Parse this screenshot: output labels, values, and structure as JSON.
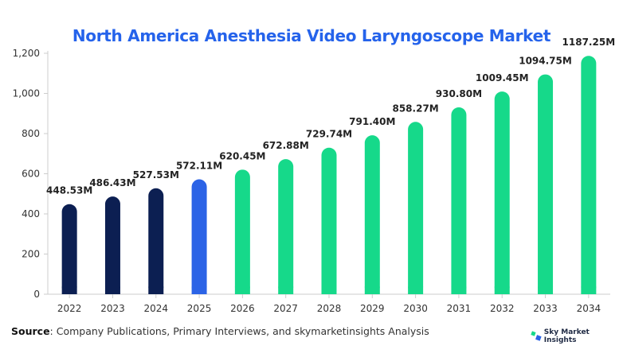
{
  "title": "North America Anesthesia Video Laryngoscope Market",
  "source": {
    "label": "Source",
    "text": ": Company Publications, Primary Interviews, and skymarketinsights Analysis"
  },
  "brand": {
    "name": "Sky Market Insights",
    "icon": "logo-icon"
  },
  "colors": {
    "historical": "#0c1f52",
    "base": "#2b63e6",
    "forecast": "#16d98a",
    "title": "#2563eb"
  },
  "chart_data": {
    "type": "bar",
    "title": "North America Anesthesia Video Laryngoscope Market",
    "xlabel": "",
    "ylabel": "",
    "ylim": [
      0,
      1200
    ],
    "yticks": [
      0,
      200,
      400,
      600,
      800,
      1000,
      1200
    ],
    "ytick_labels": [
      "0",
      "200",
      "400",
      "600",
      "800",
      "1,000",
      "1,200"
    ],
    "grid": false,
    "categories": [
      "2022",
      "2023",
      "2024",
      "2025",
      "2026",
      "2027",
      "2028",
      "2029",
      "2030",
      "2031",
      "2032",
      "2033",
      "2034"
    ],
    "values": [
      448.53,
      486.43,
      527.53,
      572.11,
      620.45,
      672.88,
      729.74,
      791.4,
      858.27,
      930.8,
      1009.45,
      1094.75,
      1187.25
    ],
    "labels": [
      "448.53M",
      "486.43M",
      "527.53M",
      "572.11M",
      "620.45M",
      "672.88M",
      "729.74M",
      "791.40M",
      "858.27M",
      "930.80M",
      "1009.45M",
      "1094.75M",
      "1187.25M"
    ],
    "bar_groups": [
      "historical",
      "historical",
      "historical",
      "base",
      "forecast",
      "forecast",
      "forecast",
      "forecast",
      "forecast",
      "forecast",
      "forecast",
      "forecast",
      "forecast"
    ]
  }
}
